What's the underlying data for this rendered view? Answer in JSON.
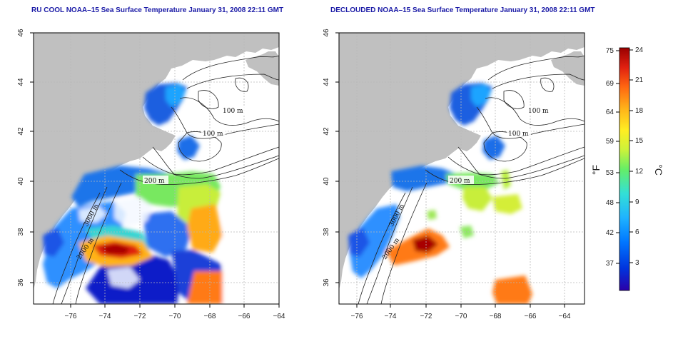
{
  "panels": [
    {
      "id": "left",
      "title": "RU COOL NOAA–15 Sea Surface Temperature January 31, 2008 22:11 GMT"
    },
    {
      "id": "right",
      "title": "DECLOUDED NOAA–15 Sea Surface Temperature January 31, 2008 22:11 GMT"
    }
  ],
  "axes": {
    "x_ticks": [
      "−76",
      "−74",
      "−72",
      "−70",
      "−68",
      "−66",
      "−64"
    ],
    "y_ticks": [
      "36",
      "38",
      "40",
      "42",
      "44",
      "46"
    ]
  },
  "contour_labels": {
    "left": [
      "100 m",
      "100 m",
      "200 m",
      "3000 m",
      "2000 m"
    ],
    "right": [
      "100 m",
      "100 m",
      "200 m",
      "3000 m",
      "2000 m"
    ]
  },
  "colorbar": {
    "fahrenheit_ticks": [
      "75",
      "69",
      "64",
      "59",
      "53",
      "48",
      "42",
      "37"
    ],
    "celsius_ticks": [
      "24",
      "21",
      "18",
      "15",
      "12",
      "9",
      "6",
      "3"
    ],
    "unit_f": "°F",
    "unit_c": "°C",
    "colors": [
      "#2b00a8",
      "#0033dd",
      "#0077ff",
      "#1fb3ff",
      "#33e0d6",
      "#66ee66",
      "#ccf23a",
      "#ffee22",
      "#ffb219",
      "#ff6611",
      "#e02010",
      "#990000"
    ]
  },
  "map_colors": {
    "land": "#c0c0c0",
    "ocean_nodata": "#ffffff",
    "grid": "#b8b8b8",
    "contour": "#222222"
  }
}
